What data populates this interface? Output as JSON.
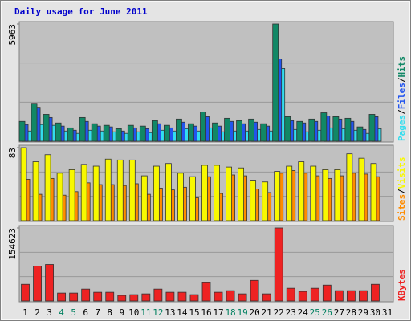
{
  "title": "Daily usage for June 2011",
  "chart_data": [
    {
      "type": "bar",
      "ylim": [
        0,
        5963
      ],
      "yticks": [
        5963
      ],
      "series": [
        {
          "name": "Pages",
          "color": "#33ddee",
          "values": [
            520,
            850,
            810,
            520,
            400,
            560,
            520,
            480,
            400,
            480,
            440,
            560,
            520,
            640,
            520,
            680,
            480,
            520,
            520,
            600,
            520,
            3700,
            600,
            480,
            560,
            680,
            640,
            560,
            400,
            640,
            0
          ]
        },
        {
          "name": "Files",
          "color": "#2255ee",
          "values": [
            850,
            1730,
            1210,
            770,
            560,
            1010,
            770,
            730,
            520,
            680,
            640,
            890,
            680,
            970,
            770,
            1250,
            770,
            1010,
            890,
            970,
            770,
            4190,
            1050,
            930,
            1010,
            1290,
            1130,
            1010,
            600,
            1250,
            0
          ]
        },
        {
          "name": "Hits",
          "color": "#118866",
          "values": [
            1010,
            1930,
            1370,
            930,
            680,
            1210,
            890,
            810,
            640,
            810,
            770,
            1050,
            810,
            1130,
            890,
            1490,
            930,
            1170,
            1050,
            1130,
            890,
            5963,
            1250,
            1010,
            1130,
            1450,
            1250,
            1170,
            730,
            1370,
            0
          ]
        }
      ]
    },
    {
      "type": "bar",
      "ylim": [
        0,
        83
      ],
      "yticks": [
        83
      ],
      "series": [
        {
          "name": "Sites",
          "color": "#ff8c00",
          "values": [
            47,
            30,
            48,
            29,
            33,
            43,
            41,
            41,
            40,
            42,
            30,
            37,
            35,
            38,
            26,
            50,
            31,
            52,
            51,
            36,
            32,
            54,
            57,
            54,
            51,
            48,
            51,
            54,
            53,
            50,
            0
          ]
        },
        {
          "name": "Visits",
          "color": "#f8f800",
          "values": [
            83,
            67,
            75,
            54,
            58,
            64,
            62,
            70,
            69,
            69,
            51,
            62,
            65,
            54,
            50,
            63,
            63,
            61,
            60,
            46,
            44,
            56,
            62,
            67,
            62,
            58,
            58,
            76,
            71,
            65,
            0
          ]
        }
      ]
    },
    {
      "type": "bar",
      "ylim": [
        0,
        154623
      ],
      "yticks": [
        154623
      ],
      "categories": [
        "1",
        "2",
        "3",
        "4",
        "5",
        "6",
        "7",
        "8",
        "9",
        "10",
        "11",
        "12",
        "13",
        "14",
        "15",
        "16",
        "17",
        "18",
        "19",
        "20",
        "21",
        "22",
        "23",
        "24",
        "25",
        "26",
        "27",
        "28",
        "29",
        "30",
        "31"
      ],
      "category_colors": [
        "#000000",
        "#000000",
        "#000000",
        "#008060",
        "#008060",
        "#000000",
        "#000000",
        "#000000",
        "#000000",
        "#000000",
        "#008060",
        "#008060",
        "#000000",
        "#000000",
        "#000000",
        "#000000",
        "#000000",
        "#008060",
        "#008060",
        "#000000",
        "#000000",
        "#000000",
        "#000000",
        "#000000",
        "#008060",
        "#008060",
        "#000000",
        "#000000",
        "#000000",
        "#000000",
        "#000000"
      ],
      "series": [
        {
          "name": "KBytes",
          "color": "#ee2222",
          "values": [
            35300,
            73900,
            77300,
            16800,
            16800,
            25200,
            18500,
            18500,
            11800,
            13400,
            15100,
            25200,
            18500,
            18500,
            13400,
            38600,
            18500,
            21800,
            15100,
            43700,
            15100,
            154623,
            26900,
            20200,
            26900,
            33600,
            21800,
            21800,
            21800,
            35300,
            0
          ]
        }
      ]
    }
  ]
}
